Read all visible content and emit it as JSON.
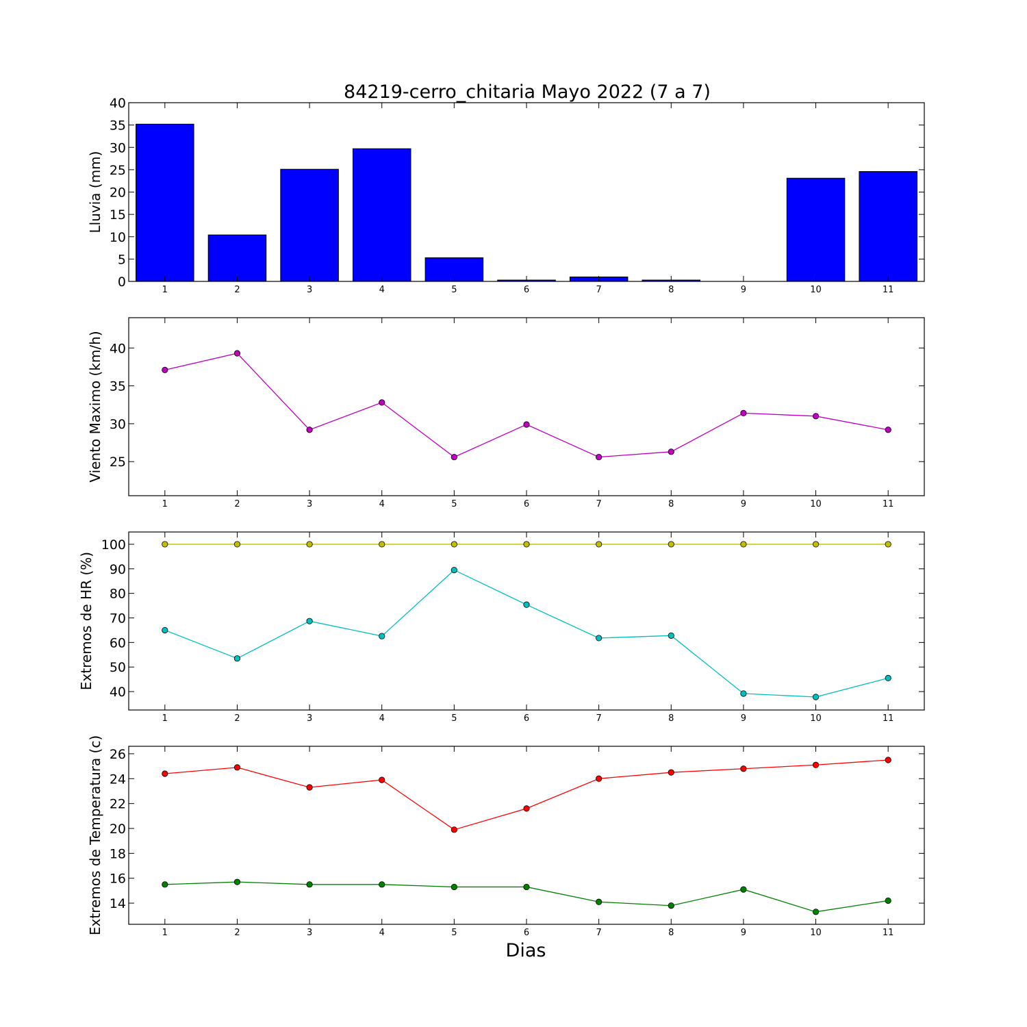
{
  "chart_data": {
    "title": "84219-cerro_chitaria Mayo 2022  (7 a 7)",
    "xlabel": "Dias",
    "panels": [
      {
        "type": "bar",
        "ylabel": "Lluvia (mm)",
        "ylim": [
          0,
          40
        ],
        "yticks": [
          0,
          5,
          10,
          15,
          20,
          25,
          30,
          35,
          40
        ],
        "x": [
          1,
          2,
          3,
          4,
          5,
          6,
          7,
          8,
          9,
          10,
          11
        ],
        "series": [
          {
            "values": [
              35.2,
              10.4,
              25.1,
              29.7,
              5.3,
              0.3,
              1.0,
              0.3,
              0.0,
              23.1,
              24.6
            ],
            "color": "#0000ff"
          }
        ]
      },
      {
        "type": "line",
        "ylabel": "Viento Maximo (km/h)",
        "ylim": [
          20.5,
          44
        ],
        "yticks": [
          25,
          30,
          35,
          40
        ],
        "x": [
          1,
          2,
          3,
          4,
          5,
          6,
          7,
          8,
          9,
          10,
          11
        ],
        "series": [
          {
            "values": [
              37.1,
              39.3,
              29.2,
              32.8,
              25.6,
              29.9,
              25.6,
              26.3,
              31.4,
              31.0,
              29.2
            ],
            "color": "#bf00bf"
          }
        ]
      },
      {
        "type": "line",
        "ylabel": "Extremos de HR (%)",
        "ylim": [
          32.5,
          105
        ],
        "yticks": [
          40,
          50,
          60,
          70,
          80,
          90,
          100
        ],
        "x": [
          1,
          2,
          3,
          4,
          5,
          6,
          7,
          8,
          9,
          10,
          11
        ],
        "series": [
          {
            "values": [
              100,
              100,
              100,
              100,
              100,
              100,
              100,
              100,
              100,
              100,
              100
            ],
            "color": "#bfbf00"
          },
          {
            "values": [
              65.0,
              53.5,
              68.7,
              62.6,
              89.5,
              75.4,
              61.8,
              62.8,
              39.2,
              37.8,
              45.5
            ],
            "color": "#00bfbf"
          }
        ]
      },
      {
        "type": "line",
        "ylabel": "Extremos de Temperatura (c)",
        "ylim": [
          12.3,
          26.6
        ],
        "yticks": [
          14,
          16,
          18,
          20,
          22,
          24,
          26
        ],
        "x": [
          1,
          2,
          3,
          4,
          5,
          6,
          7,
          8,
          9,
          10,
          11
        ],
        "series": [
          {
            "values": [
              24.4,
              24.9,
              23.3,
              23.9,
              19.9,
              21.6,
              24.0,
              24.5,
              24.8,
              25.1,
              25.5
            ],
            "color": "#ff0000"
          },
          {
            "values": [
              15.5,
              15.7,
              15.5,
              15.5,
              15.3,
              15.3,
              14.1,
              13.8,
              15.1,
              13.3,
              14.2
            ],
            "color": "#008000"
          }
        ]
      }
    ]
  }
}
